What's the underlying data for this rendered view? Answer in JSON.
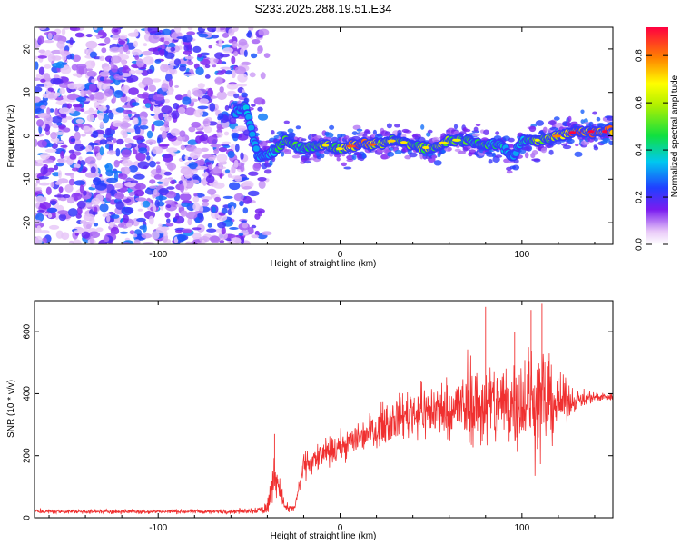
{
  "title": "S233.2025.288.19.51.E34",
  "chart_data": [
    {
      "type": "heatmap",
      "name": "spectrogram",
      "xlabel": "Height of straight line (km)",
      "ylabel": "Frequency (Hz)",
      "xlim": [
        -168,
        150
      ],
      "ylim": [
        -25,
        25
      ],
      "xticks": [
        -100,
        0,
        100
      ],
      "yticks": [
        -20,
        -10,
        0,
        10,
        20
      ],
      "colorbar": {
        "label": "Normalized spectral amplitude",
        "range": [
          0,
          0.92
        ],
        "ticks": [
          0.0,
          0.2,
          0.4,
          0.6,
          0.8
        ]
      },
      "noise_region_x": [
        -168,
        -52
      ],
      "noise_amplitude": [
        0.05,
        0.3
      ],
      "ridge": {
        "x": [
          -58,
          -52,
          -45,
          -38,
          -30,
          -20,
          -10,
          0,
          10,
          20,
          30,
          40,
          50,
          60,
          70,
          80,
          88,
          95,
          100,
          105,
          110,
          120,
          130,
          140,
          150
        ],
        "frequency": [
          5,
          7,
          -5,
          -4,
          -1,
          -3,
          -2,
          -3,
          -2,
          -2,
          -1,
          -2,
          -3,
          -1,
          -1,
          -2,
          -2,
          -5,
          -1,
          -1,
          -1,
          0,
          1,
          1,
          1
        ],
        "amplitude": [
          0.3,
          0.4,
          0.2,
          0.4,
          0.5,
          0.5,
          0.6,
          0.6,
          0.85,
          0.7,
          0.6,
          0.6,
          0.6,
          0.6,
          0.5,
          0.5,
          0.4,
          0.3,
          0.4,
          0.5,
          0.6,
          0.7,
          0.85,
          0.9,
          0.9
        ]
      }
    },
    {
      "type": "line",
      "name": "snr",
      "xlabel": "Height of straight line (km)",
      "ylabel": "SNR (10 * v/v)",
      "xlim": [
        -168,
        150
      ],
      "ylim": [
        0,
        700
      ],
      "xticks": [
        -100,
        0,
        100
      ],
      "yticks": [
        0,
        200,
        400,
        600
      ],
      "color": "#f03030",
      "envelope": {
        "x": [
          -168,
          -60,
          -45,
          -40,
          -36,
          -30,
          -25,
          -20,
          -10,
          0,
          10,
          20,
          30,
          40,
          60,
          80,
          100,
          110,
          120,
          130,
          140,
          150
        ],
        "mean": [
          20,
          20,
          25,
          30,
          150,
          30,
          30,
          170,
          200,
          225,
          260,
          290,
          320,
          340,
          350,
          360,
          380,
          380,
          370,
          380,
          390,
          390
        ],
        "noise": [
          6,
          6,
          10,
          25,
          60,
          15,
          10,
          35,
          40,
          40,
          45,
          50,
          60,
          70,
          80,
          120,
          130,
          160,
          80,
          25,
          15,
          12
        ]
      },
      "peaks": [
        {
          "x": -36,
          "y": 270
        },
        {
          "x": 80,
          "y": 680
        },
        {
          "x": 96,
          "y": 600
        },
        {
          "x": 105,
          "y": 670
        },
        {
          "x": 111,
          "y": 690
        }
      ]
    }
  ]
}
